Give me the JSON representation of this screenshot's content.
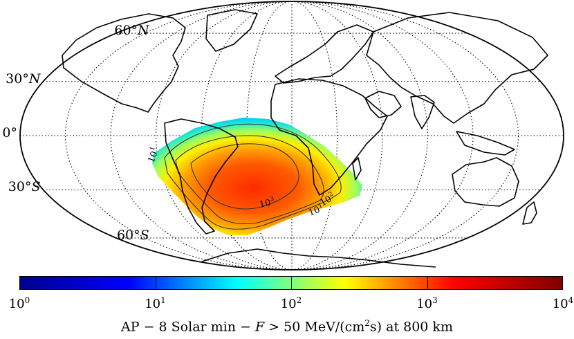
{
  "map": {
    "projection": "mollweide",
    "graticule": {
      "parallels_deg": [
        -60,
        -30,
        0,
        30,
        60
      ],
      "meridian_step_deg": 30,
      "style": "dotted"
    },
    "lat_labels": [
      {
        "lat": 60,
        "num": "60",
        "hemi": "N"
      },
      {
        "lat": 30,
        "num": "30",
        "hemi": "N"
      },
      {
        "lat": 0,
        "num": "0",
        "hemi": ""
      },
      {
        "lat": -30,
        "num": "30",
        "hemi": "S"
      },
      {
        "lat": -60,
        "num": "60",
        "hemi": "S"
      }
    ],
    "anomaly": {
      "name": "South Atlantic Anomaly",
      "contours": [
        {
          "label_base": "10",
          "label_exp": "1"
        },
        {
          "label_base": "10",
          "label_exp": "2"
        },
        {
          "label_base": "10",
          "label_exp": "3"
        }
      ]
    }
  },
  "colorbar": {
    "scale": "log",
    "range": [
      1,
      10000
    ],
    "colormap": "jet",
    "colors": [
      "#00008f",
      "#0000ff",
      "#00ffff",
      "#ffff00",
      "#ff0000",
      "#800000"
    ],
    "ticks": [
      {
        "base": "10",
        "exp": "0"
      },
      {
        "base": "10",
        "exp": "1"
      },
      {
        "base": "10",
        "exp": "2"
      },
      {
        "base": "10",
        "exp": "3"
      },
      {
        "base": "10",
        "exp": "4"
      }
    ],
    "title": {
      "part1": "AP − 8 Solar min − ",
      "var": "F",
      "part2": " > 50 MeV/(cm",
      "sup": "2",
      "part3": "s) at 800 km"
    }
  }
}
